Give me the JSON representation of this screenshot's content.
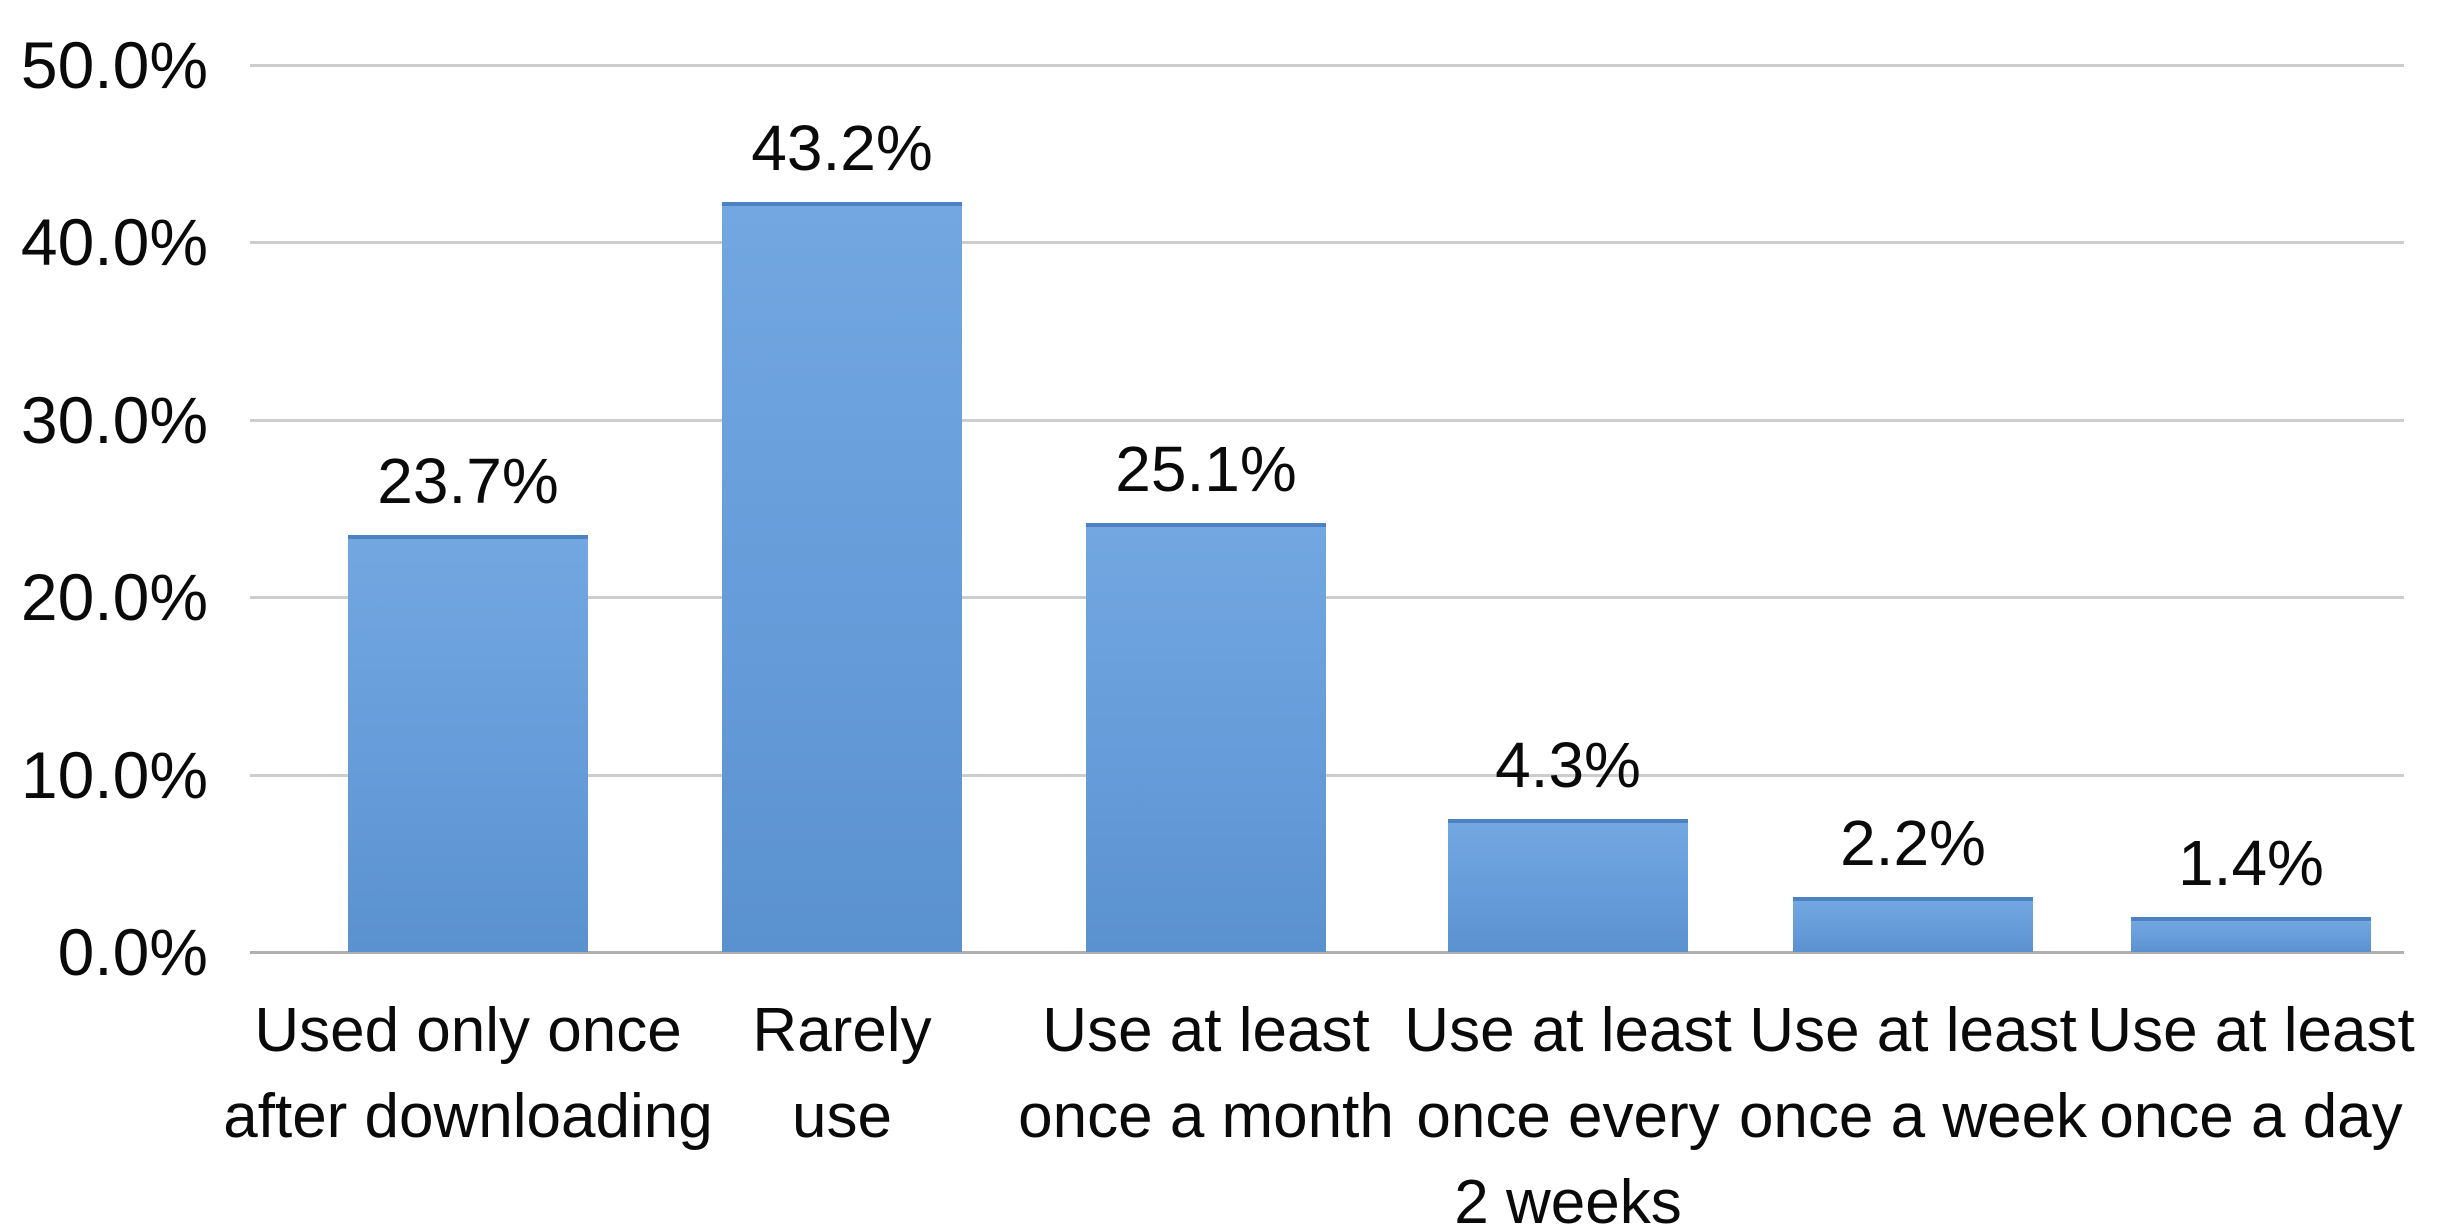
{
  "chart_data": {
    "type": "bar",
    "title": "",
    "xlabel": "",
    "ylabel": "",
    "legend": "none",
    "grid": "horizontal",
    "ylim": [
      0,
      50
    ],
    "ytick_labels": [
      "0.0%",
      "10.0%",
      "20.0%",
      "30.0%",
      "40.0%",
      "50.0%"
    ],
    "categories": [
      "Used only once\nafter downloading",
      "Rarely\nuse",
      "Use at least\nonce a month",
      "Use at least\nonce every\n2 weeks",
      "Use at least\nonce a week",
      "Use at least\nonce a day"
    ],
    "values": [
      23.7,
      43.2,
      25.1,
      4.3,
      2.2,
      1.4
    ],
    "data_labels": [
      "23.7%",
      "43.2%",
      "25.1%",
      "4.3%",
      "2.2%",
      "1.4%"
    ],
    "bar_display_heights_pct": [
      23.5,
      42.3,
      24.2,
      7.5,
      3.1,
      2.0
    ],
    "colors": {
      "background": "#ffffff",
      "text": "#0a0a0a",
      "gridline": "#cdcdcd",
      "baseline": "#b0b0b0",
      "bar_fill": "#659cd9",
      "bar_fill_light": "#72a7e1",
      "bar_fill_dark": "#5a91cf",
      "bar_top_edge": "#4a82c3"
    }
  }
}
